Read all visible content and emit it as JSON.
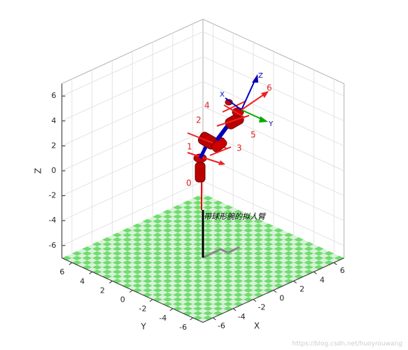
{
  "chart_data": {
    "type": "robot3d",
    "xlabel": "X",
    "ylabel": "Y",
    "zlabel": "Z",
    "xlim": [
      -7,
      7
    ],
    "ylim": [
      -7,
      7
    ],
    "zlim": [
      -7,
      7
    ],
    "xticks": [
      -6,
      -4,
      -2,
      0,
      2,
      4,
      6
    ],
    "yticks": [
      -6,
      -4,
      -2,
      0,
      2,
      4,
      6
    ],
    "zticks": [
      -6,
      -4,
      -2,
      0,
      2,
      4,
      6
    ],
    "grid": true,
    "robot_name": "带球形腕的拟人臂",
    "joint_labels": [
      "0",
      "1",
      "2",
      "3",
      "4",
      "5",
      "6"
    ],
    "frame_labels": {
      "x": "X",
      "y": "Y",
      "z": "Z"
    }
  },
  "watermark": "https://blog.csdn.net/huoyrouwang"
}
